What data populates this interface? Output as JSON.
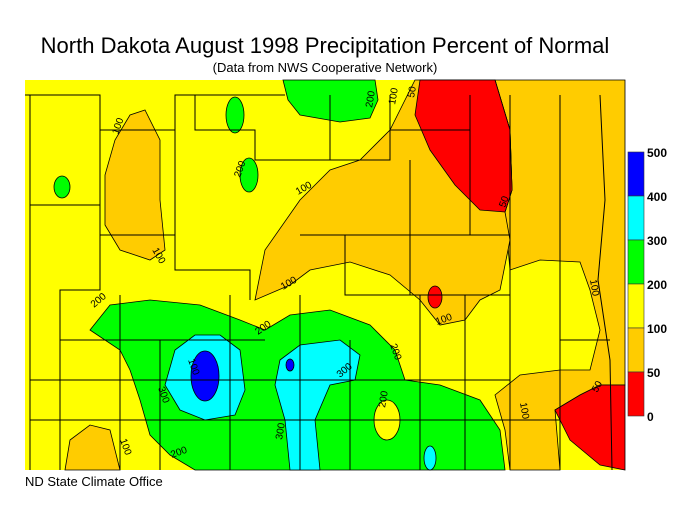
{
  "title": "North Dakota August 1998 Precipitation Percent of Normal",
  "subtitle": "(Data from NWS Cooperative Network)",
  "footer": "ND State Climate Office",
  "legend": {
    "bins": [
      {
        "range": "0-50",
        "color": "#ff0000"
      },
      {
        "range": "50-100",
        "color": "#ffcc00"
      },
      {
        "range": "100-200",
        "color": "#ffff00"
      },
      {
        "range": "200-300",
        "color": "#00ff00"
      },
      {
        "range": "300-400",
        "color": "#00ffff"
      },
      {
        "range": "400-500",
        "color": "#0000ff"
      }
    ],
    "ticks": [
      "500",
      "400",
      "300",
      "200",
      "100",
      "50",
      "0"
    ]
  },
  "contour_labels": [
    "100",
    "200",
    "100",
    "100",
    "100",
    "200",
    "100",
    "50",
    "50",
    "200",
    "200",
    "100",
    "300",
    "100",
    "300",
    "200",
    "100",
    "300",
    "200",
    "100",
    "200",
    "50",
    "100"
  ]
}
